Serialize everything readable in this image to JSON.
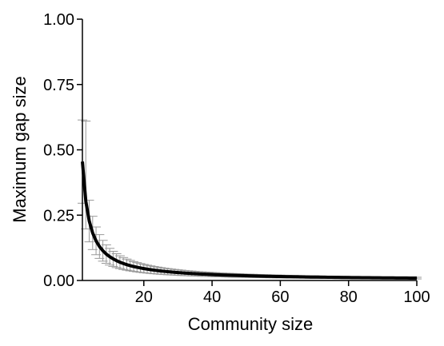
{
  "chart_data": {
    "type": "line",
    "title": "",
    "xlabel": "Community size",
    "ylabel": "Maximum gap size",
    "xlim": [
      2,
      100
    ],
    "ylim": [
      0,
      1
    ],
    "x_ticks": [
      20,
      40,
      60,
      80,
      100
    ],
    "x_tick_labels": [
      "20",
      "40",
      "60",
      "80",
      "100"
    ],
    "y_ticks": [
      0,
      0.25,
      0.5,
      0.75,
      1.0
    ],
    "y_tick_labels": [
      "0.00",
      "0.25",
      "0.50",
      "0.75",
      "1.00"
    ],
    "grid": false,
    "legend": "none",
    "mean_curve": {
      "color": "#000000",
      "approx_model": "y = 0.91 / x",
      "x_start": 2,
      "x_end": 100,
      "step": 1
    },
    "error_bars": {
      "color": "#999999",
      "x_start": 2,
      "x_end": 100,
      "step": 1,
      "relative_upper": 0.35,
      "relative_lower": 0.35,
      "peak_upper_at_x3": 0.61
    }
  }
}
